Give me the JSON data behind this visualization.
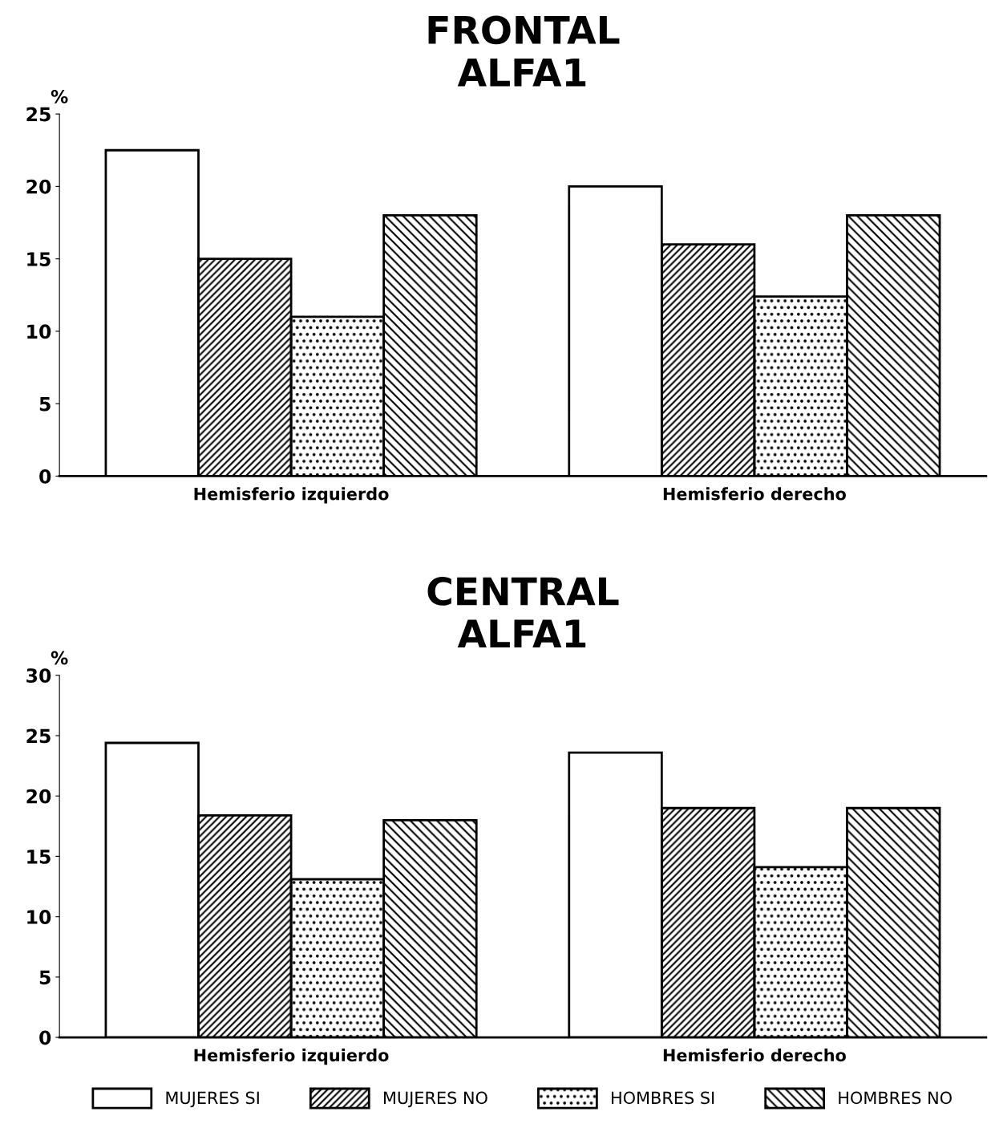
{
  "chart_data": [
    {
      "type": "bar",
      "title": "FRONTAL\nALFA1",
      "ylabel": "%",
      "categories": [
        "Hemisferio izquierdo",
        "Hemisferio derecho"
      ],
      "ylim": [
        0,
        25
      ],
      "yticks": [
        0,
        5,
        10,
        15,
        20,
        25
      ],
      "grid": false,
      "legend": false,
      "series": [
        {
          "color": "#ffffff",
          "values": [
            22.5,
            20
          ]
        },
        {
          "color": "#000000",
          "values": [
            15,
            16
          ]
        },
        {
          "color": "#000000",
          "values": [
            11,
            12.4
          ]
        },
        {
          "color": "#000000",
          "values": [
            18,
            18
          ]
        }
      ]
    },
    {
      "type": "bar",
      "title": "CENTRAL\nALFA1",
      "ylabel": "%",
      "categories": [
        "Hemisferio izquierdo",
        "Hemisferio derecho"
      ],
      "ylim": [
        0,
        30
      ],
      "yticks": [
        0,
        5,
        10,
        15,
        20,
        25,
        30
      ],
      "grid": false,
      "legend": "bottom",
      "series": [
        {
          "name": "MUJERES SI",
          "color": "#ffffff",
          "values": [
            24.4,
            23.6
          ]
        },
        {
          "name": "MUJERES NO",
          "color": "#000000",
          "values": [
            18.4,
            19
          ]
        },
        {
          "name": "HOMBRES SI",
          "color": "#000000",
          "values": [
            13.1,
            14.1
          ]
        },
        {
          "name": "HOMBRES NO",
          "color": "#000000",
          "values": [
            18,
            19
          ]
        }
      ]
    }
  ]
}
